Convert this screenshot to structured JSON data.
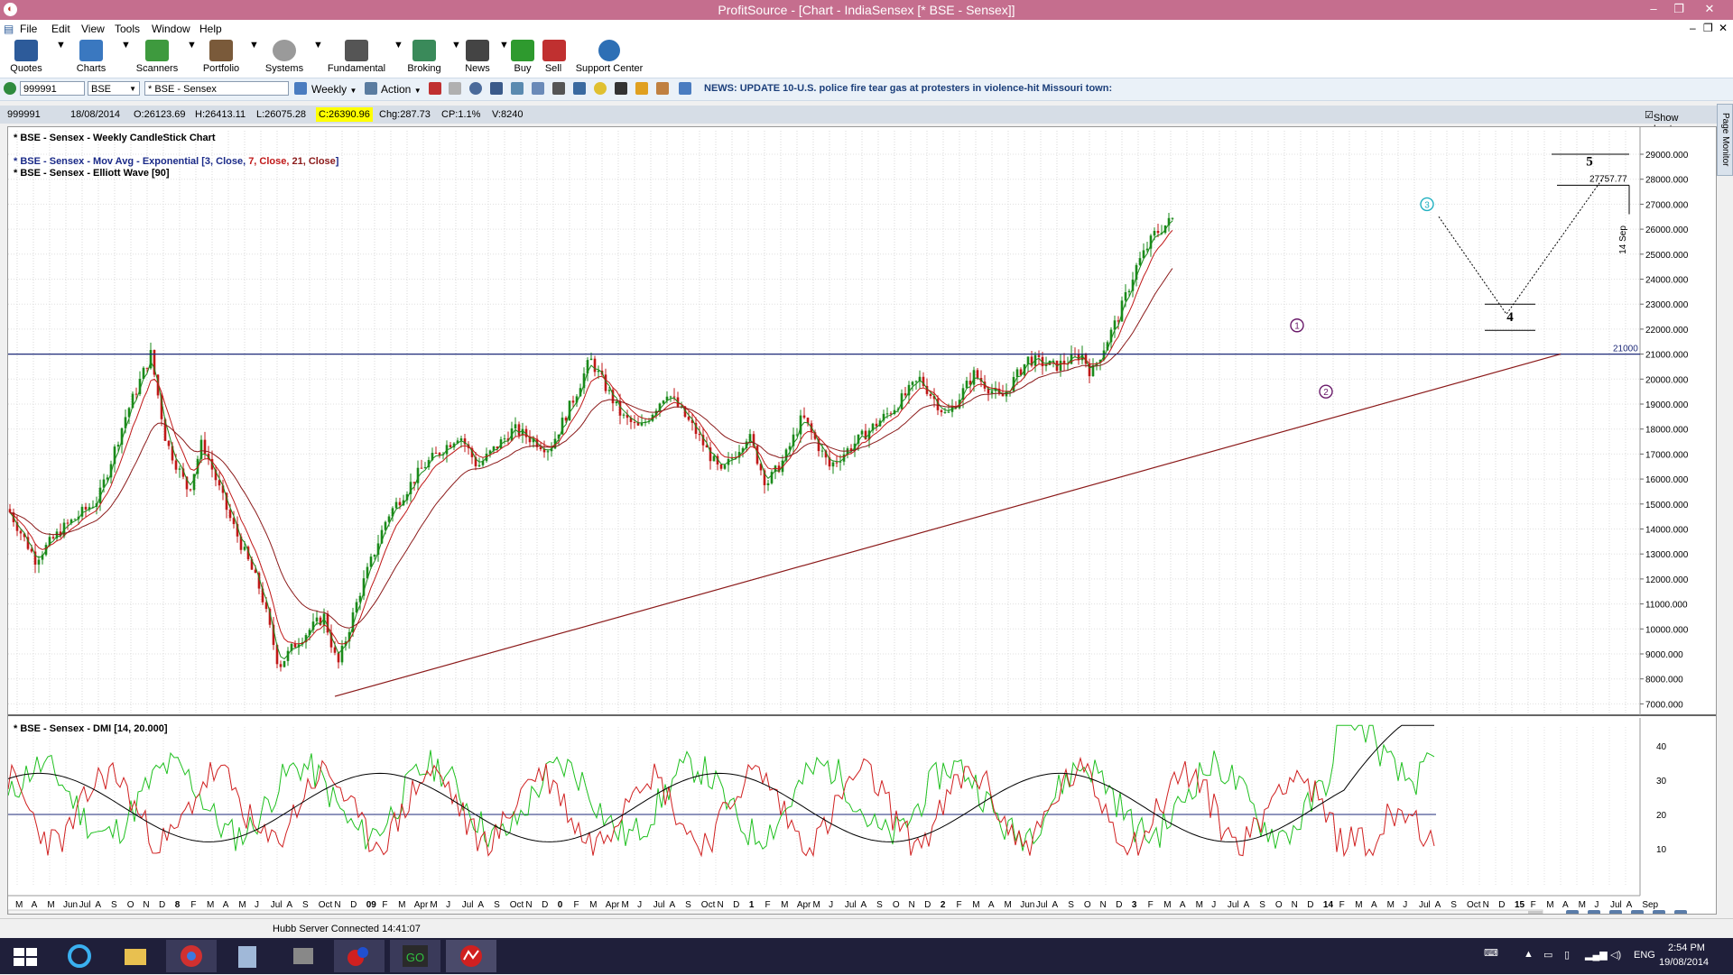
{
  "window": {
    "title": "ProfitSource - [Chart - IndiaSensex [* BSE - Sensex]]"
  },
  "menu": [
    "File",
    "Edit",
    "View",
    "Tools",
    "Window",
    "Help"
  ],
  "toolbar": [
    {
      "label": "Quotes",
      "icon": "quotes-icon",
      "color": "#2d5b9a"
    },
    {
      "label": "Charts",
      "icon": "charts-icon",
      "color": "#3a78c0"
    },
    {
      "label": "Scanners",
      "icon": "scanners-icon",
      "color": "#3e9a3e"
    },
    {
      "label": "Portfolio",
      "icon": "portfolio-icon",
      "color": "#7a5a3a"
    },
    {
      "label": "Systems",
      "icon": "systems-icon",
      "color": "#888888"
    },
    {
      "label": "Fundamental",
      "icon": "fundamental-icon",
      "color": "#555555"
    },
    {
      "label": "Broking",
      "icon": "broking-icon",
      "color": "#3a8a5a"
    },
    {
      "label": "News",
      "icon": "news-icon",
      "color": "#444444"
    },
    {
      "label": "Buy",
      "icon": "buy-icon",
      "color": "#2e9a2e"
    },
    {
      "label": "Sell",
      "icon": "sell-icon",
      "color": "#c03030"
    },
    {
      "label": "Support Center",
      "icon": "help-icon",
      "color": "#2d6fb5"
    }
  ],
  "security_bar": {
    "code": "999991",
    "exchange": "BSE",
    "name": "* BSE - Sensex",
    "period": "Weekly",
    "action": "Action",
    "news": "NEWS: UPDATE 10-U.S. police fire tear gas at protesters in violence-hit Missouri town:"
  },
  "infobar": {
    "code": "999991",
    "date": "18/08/2014",
    "open": "O:26123.69",
    "high": "H:26413.11",
    "low": "L:26075.28",
    "close": "C:26390.96",
    "change": "Chg:287.73",
    "change_pct": "CP:1.1%",
    "volume": "V:8240",
    "show_last": "Show Last"
  },
  "page_monitor": "Page Monitor",
  "chart": {
    "title": "* BSE - Sensex - Weekly CandleStick Chart",
    "ma_prefix": "* BSE - Sensex - Mov Avg - Exponential [",
    "ma_p1": "3, Close, ",
    "ma_p2": "7, Close, ",
    "ma_p3": "21, Close",
    "ma_suffix": "]",
    "ew_title": "* BSE - Sensex - Elliott Wave [90]",
    "dmi_title": "* BSE - Sensex - DMI [14, 20.000]",
    "price_ticks": [
      "29000.000",
      "28000.000",
      "27000.000",
      "26000.000",
      "25000.000",
      "24000.000",
      "23000.000",
      "22000.000",
      "21000.000",
      "20000.000",
      "19000.000",
      "18000.000",
      "17000.000",
      "16000.000",
      "15000.000",
      "14000.000",
      "13000.000",
      "12000.000",
      "11000.000",
      "10000.000",
      "9000.000",
      "8000.000",
      "7000.000"
    ],
    "dmi_ticks": [
      "40",
      "30",
      "20",
      "10"
    ],
    "hline_label": "21000",
    "target_label": "27757.77",
    "date_label": "14 Sep",
    "wave_labels": [
      "1",
      "2",
      "3",
      "4",
      "5"
    ],
    "time_axis": [
      "M",
      "A",
      "M",
      "Jun",
      "Jul",
      "A",
      "S",
      "O",
      "N",
      "D",
      "8",
      "F",
      "M",
      "A",
      "M",
      "J",
      "Jul",
      "A",
      "S",
      "Oct",
      "N",
      "D",
      "09",
      "F",
      "M",
      "Apr",
      "M",
      "J",
      "Jul",
      "A",
      "S",
      "Oct",
      "N",
      "D",
      "0",
      "F",
      "M",
      "Apr",
      "M",
      "J",
      "Jul",
      "A",
      "S",
      "Oct",
      "N",
      "D",
      "1",
      "F",
      "M",
      "Apr",
      "M",
      "J",
      "Jul",
      "A",
      "S",
      "O",
      "N",
      "D",
      "2",
      "F",
      "M",
      "A",
      "M",
      "Jun",
      "Jul",
      "A",
      "S",
      "O",
      "N",
      "D",
      "3",
      "F",
      "M",
      "A",
      "M",
      "J",
      "Jul",
      "A",
      "S",
      "O",
      "N",
      "D",
      "14",
      "F",
      "M",
      "A",
      "M",
      "J",
      "Jul",
      "A",
      "S",
      "Oct",
      "N",
      "D",
      "15",
      "F",
      "M",
      "A",
      "M",
      "J",
      "Jul",
      "A",
      "Sep"
    ]
  },
  "status": {
    "text": "Hubb Server Connected 14:41:07"
  },
  "taskbar": {
    "time": "2:54 PM",
    "date": "19/08/2014",
    "lang": "ENG"
  },
  "colors": {
    "title_bar": "#c56e8e",
    "candle_up": "#1a8a1a",
    "candle_down": "#c01818",
    "ma3": "#1a8a1a",
    "ma7": "#c01818",
    "ma21": "#8b1a1a",
    "hline": "#1e2a78",
    "trendline": "#8b1a1a",
    "dmi_plus": "#20c020",
    "dmi_minus": "#d02020",
    "adx": "#000000"
  }
}
